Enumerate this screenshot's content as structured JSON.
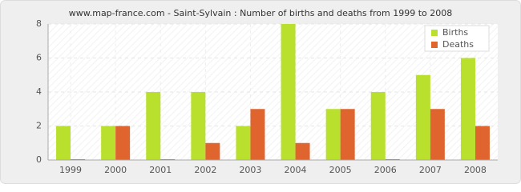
{
  "chart_data": {
    "type": "bar",
    "title": "www.map-france.com - Saint-Sylvain : Number of births and deaths from 1999 to 2008",
    "categories": [
      "1999",
      "2000",
      "2001",
      "2002",
      "2003",
      "2004",
      "2005",
      "2006",
      "2007",
      "2008"
    ],
    "series": [
      {
        "name": "Births",
        "color": "#b9e02d",
        "values": [
          2,
          2,
          4,
          4,
          2,
          8,
          3,
          4,
          5,
          6
        ]
      },
      {
        "name": "Deaths",
        "color": "#e0642e",
        "values": [
          0,
          2,
          0,
          1,
          3,
          1,
          3,
          0,
          3,
          2
        ]
      }
    ],
    "ylim": [
      0,
      8
    ],
    "yticks": [
      0,
      2,
      4,
      6,
      8
    ],
    "grid": true,
    "legend": "top-right"
  }
}
